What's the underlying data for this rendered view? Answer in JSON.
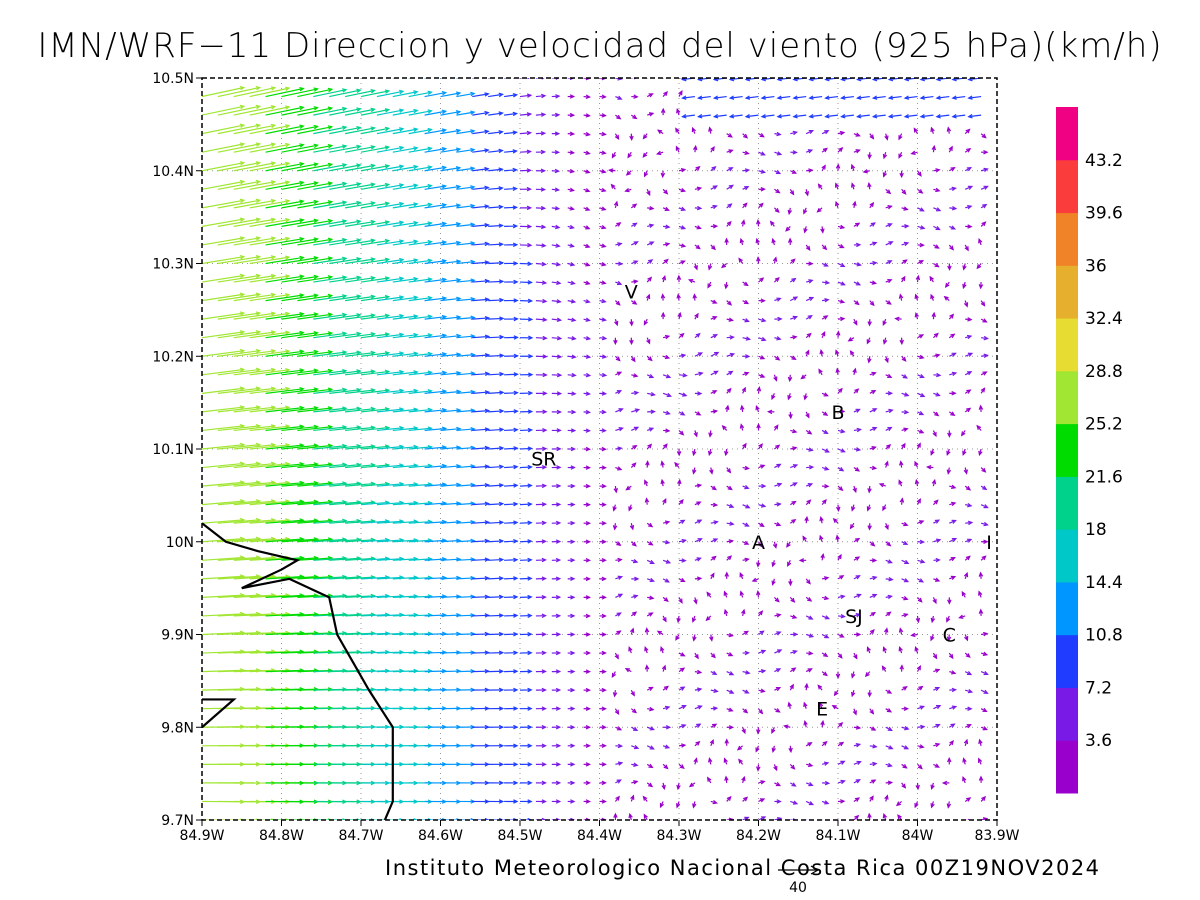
{
  "title": "IMN/WRF−11 Direccion y velocidad del viento (925 hPa)(km/h)",
  "footer": "Instituto Meteorologico Nacional Costa Rica 00Z19NOV2024",
  "reference_vector_label": "40",
  "chart_data": {
    "type": "vector-field",
    "title": "IMN/WRF−11 Direccion y velocidad del viento (925 hPa)(km/h)",
    "x_ticks": [
      "84.9W",
      "84.8W",
      "84.7W",
      "84.6W",
      "84.5W",
      "84.4W",
      "84.3W",
      "84.2W",
      "84.1W",
      "84W",
      "83.9W"
    ],
    "y_ticks": [
      "9.7N",
      "9.8N",
      "9.9N",
      "10N",
      "10.1N",
      "10.2N",
      "10.3N",
      "10.4N",
      "10.5N"
    ],
    "xlim": [
      -84.9,
      -83.9
    ],
    "ylim": [
      9.7,
      10.5
    ],
    "grid": "dotted",
    "colorbar": {
      "labels": [
        "3.6",
        "7.2",
        "10.8",
        "14.4",
        "18",
        "21.6",
        "25.2",
        "28.8",
        "32.4",
        "36",
        "39.6",
        "43.2"
      ],
      "colors": [
        "#9900cc",
        "#7a1ae6",
        "#1f3cff",
        "#0096ff",
        "#00c8c8",
        "#00d28c",
        "#00dc00",
        "#a0e632",
        "#e6dc32",
        "#e6af2d",
        "#f08228",
        "#fa3c3c",
        "#f00082"
      ]
    },
    "station_labels": [
      {
        "text": "V",
        "lon": -84.36,
        "lat": 10.27
      },
      {
        "text": "B",
        "lon": -84.1,
        "lat": 10.14
      },
      {
        "text": "SR",
        "lon": -84.47,
        "lat": 10.09
      },
      {
        "text": "A",
        "lon": -84.2,
        "lat": 10.0
      },
      {
        "text": "I",
        "lon": -83.91,
        "lat": 10.0
      },
      {
        "text": "SJ",
        "lon": -84.08,
        "lat": 9.92
      },
      {
        "text": "C",
        "lon": -83.96,
        "lat": 9.9
      },
      {
        "text": "E",
        "lon": -84.12,
        "lat": 9.82
      }
    ],
    "coastline": [
      [
        -84.9,
        10.02
      ],
      [
        -84.87,
        10.0
      ],
      [
        -84.83,
        9.99
      ],
      [
        -84.78,
        9.98
      ],
      [
        -84.8,
        9.97
      ],
      [
        -84.85,
        9.95
      ],
      [
        -84.79,
        9.96
      ],
      [
        -84.74,
        9.94
      ],
      [
        -84.73,
        9.9
      ],
      [
        -84.71,
        9.87
      ],
      [
        -84.69,
        9.84
      ],
      [
        -84.66,
        9.8
      ],
      [
        -84.66,
        9.76
      ],
      [
        -84.66,
        9.72
      ],
      [
        -84.67,
        9.7
      ]
    ],
    "peninsula_tip": [
      [
        -84.9,
        9.8
      ],
      [
        -84.86,
        9.83
      ],
      [
        -84.9,
        9.83
      ]
    ]
  }
}
